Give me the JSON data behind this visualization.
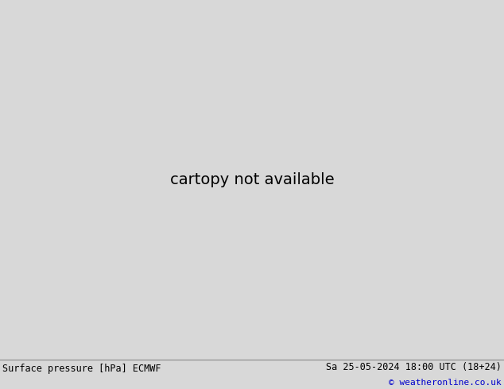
{
  "title_left": "Surface pressure [hPa] ECMWF",
  "title_right": "Sa 25-05-2024 18:00 UTC (18+24)",
  "copyright": "© weatheronline.co.uk",
  "fig_width": 6.34,
  "fig_height": 4.9,
  "dpi": 100,
  "bg_color": "#d8d8d8",
  "land_color": "#c8e8b0",
  "ocean_color": "#d8d8d8",
  "footer_bg": "#e0e0e0",
  "footer_line_color": "#888888"
}
